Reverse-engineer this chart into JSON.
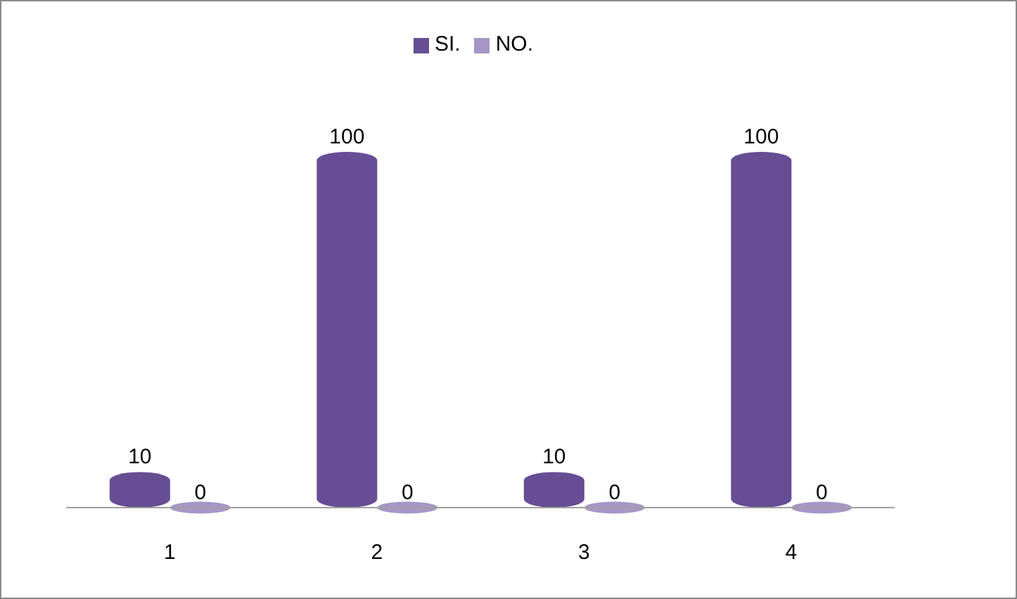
{
  "chart_data": {
    "type": "bar",
    "categories": [
      "1",
      "2",
      "3",
      "4"
    ],
    "series": [
      {
        "name": "SI.",
        "color": "#674d94",
        "values": [
          10,
          100,
          10,
          100
        ]
      },
      {
        "name": "NO.",
        "color": "#a596c6",
        "values": [
          0,
          0,
          0,
          0
        ]
      }
    ],
    "data_labels": true,
    "legend": "top",
    "tick_labels": "x"
  }
}
